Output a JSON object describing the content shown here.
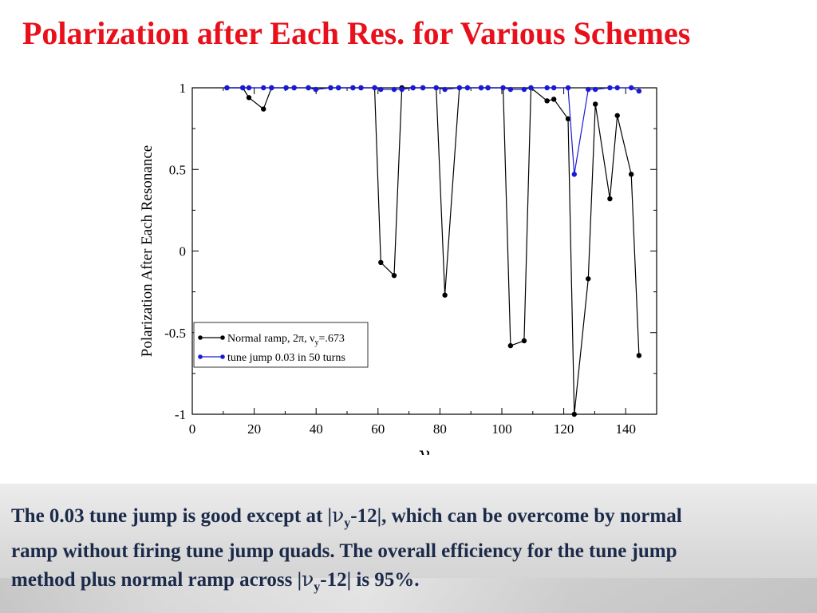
{
  "slide": {
    "title": "Polarization after Each Res. for Various Schemes"
  },
  "footer": {
    "line1_a": "The 0.03 tune jump is good except at |",
    "line1_nu": "ν",
    "line1_sub": "y",
    "line1_b": "-12|, which can be overcome by normal",
    "line2": "ramp without firing tune jump quads.  The overall efficiency for the tune jump",
    "line3_a": "method plus normal ramp across |",
    "line3_nu": "ν",
    "line3_sub": "y",
    "line3_b": "-12|   is 95%."
  },
  "chart_data": {
    "type": "line",
    "xlabel": "γ",
    "ylabel": "Polarization After Each Resonance",
    "xlim": [
      0,
      150
    ],
    "ylim": [
      -1,
      1
    ],
    "xticks": [
      0,
      20,
      40,
      60,
      80,
      100,
      120,
      140
    ],
    "yticks": [
      -1,
      -0.5,
      0,
      0.5,
      1
    ],
    "xtick_labels": [
      "0",
      "20",
      "40",
      "60",
      "80",
      "100",
      "120",
      "140"
    ],
    "ytick_labels": [
      "-1",
      "-0.5",
      "0",
      "0.5",
      "1"
    ],
    "legend_position": "lower-left",
    "grid": false,
    "series": [
      {
        "name": "Normal ramp, 2π, ν",
        "name_sub": "y",
        "name_tail": "=.673",
        "color": "#000000",
        "points": [
          [
            11.2,
            1.0
          ],
          [
            16.3,
            1.0
          ],
          [
            18.3,
            0.94
          ],
          [
            23.0,
            0.87
          ],
          [
            25.6,
            1.0
          ],
          [
            30.3,
            1.0
          ],
          [
            32.9,
            1.0
          ],
          [
            37.5,
            1.0
          ],
          [
            39.9,
            0.99
          ],
          [
            44.7,
            1.0
          ],
          [
            47.2,
            1.0
          ],
          [
            51.9,
            1.0
          ],
          [
            54.5,
            1.0
          ],
          [
            58.9,
            1.0
          ],
          [
            60.9,
            -0.07
          ],
          [
            65.2,
            -0.15
          ],
          [
            67.7,
            1.0
          ],
          [
            71.3,
            1.0
          ],
          [
            74.5,
            1.0
          ],
          [
            78.8,
            1.0
          ],
          [
            81.6,
            -0.27
          ],
          [
            86.3,
            1.0
          ],
          [
            88.9,
            1.0
          ],
          [
            93.3,
            1.0
          ],
          [
            95.5,
            1.0
          ],
          [
            100.4,
            1.0
          ],
          [
            102.8,
            -0.58
          ],
          [
            107.2,
            -0.55
          ],
          [
            109.4,
            1.0
          ],
          [
            114.6,
            0.92
          ],
          [
            116.8,
            0.93
          ],
          [
            121.4,
            0.81
          ],
          [
            123.4,
            -1.0
          ],
          [
            127.9,
            -0.17
          ],
          [
            130.2,
            0.9
          ],
          [
            134.9,
            0.32
          ],
          [
            137.3,
            0.83
          ],
          [
            141.8,
            0.47
          ],
          [
            144.3,
            -0.64
          ]
        ]
      },
      {
        "name": "tune jump 0.03 in 50 turns",
        "name_sub": "",
        "name_tail": "",
        "color": "#1a1ad6",
        "points": [
          [
            11.2,
            1.0
          ],
          [
            16.3,
            1.0
          ],
          [
            18.3,
            1.0
          ],
          [
            23.0,
            1.0
          ],
          [
            25.6,
            1.0
          ],
          [
            30.3,
            1.0
          ],
          [
            32.9,
            1.0
          ],
          [
            37.5,
            1.0
          ],
          [
            39.9,
            0.99
          ],
          [
            44.7,
            1.0
          ],
          [
            47.2,
            1.0
          ],
          [
            51.9,
            1.0
          ],
          [
            54.5,
            1.0
          ],
          [
            58.9,
            1.0
          ],
          [
            60.9,
            0.99
          ],
          [
            65.2,
            0.99
          ],
          [
            67.7,
            0.99
          ],
          [
            71.3,
            1.0
          ],
          [
            74.5,
            1.0
          ],
          [
            78.8,
            1.0
          ],
          [
            81.6,
            0.99
          ],
          [
            86.3,
            1.0
          ],
          [
            88.9,
            1.0
          ],
          [
            93.3,
            1.0
          ],
          [
            95.5,
            1.0
          ],
          [
            100.4,
            1.0
          ],
          [
            102.8,
            0.99
          ],
          [
            107.2,
            0.99
          ],
          [
            109.4,
            1.0
          ],
          [
            114.6,
            1.0
          ],
          [
            116.8,
            1.0
          ],
          [
            121.4,
            1.0
          ],
          [
            123.4,
            0.47
          ],
          [
            127.9,
            0.99
          ],
          [
            130.2,
            0.99
          ],
          [
            134.9,
            1.0
          ],
          [
            137.3,
            1.0
          ],
          [
            141.8,
            1.0
          ],
          [
            144.3,
            0.98
          ]
        ]
      }
    ]
  }
}
